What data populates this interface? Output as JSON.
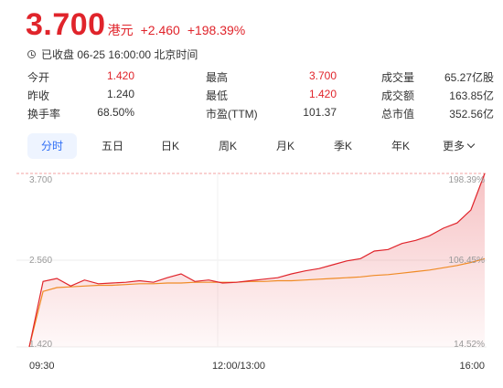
{
  "header": {
    "price": "3.700",
    "currency": "港元",
    "change": "+2.460",
    "change_pct": "+198.39%"
  },
  "status": {
    "text": "已收盘 06-25 16:00:00 北京时间"
  },
  "stats": {
    "rows": [
      [
        {
          "label": "今开",
          "value": "1.420"
        },
        {
          "label": "最高",
          "value": "3.700"
        },
        {
          "label": "成交量",
          "value": "65.27亿股"
        }
      ],
      [
        {
          "label": "昨收",
          "value": "1.240"
        },
        {
          "label": "最低",
          "value": "1.420"
        },
        {
          "label": "成交额",
          "value": "163.85亿"
        }
      ],
      [
        {
          "label": "换手率",
          "value": "68.50%"
        },
        {
          "label": "市盈(TTM)",
          "value": "101.37"
        },
        {
          "label": "总市值",
          "value": "352.56亿"
        }
      ]
    ]
  },
  "tabs": [
    {
      "label": "分时",
      "active": true
    },
    {
      "label": "五日"
    },
    {
      "label": "日K"
    },
    {
      "label": "周K"
    },
    {
      "label": "月K"
    },
    {
      "label": "季K"
    },
    {
      "label": "年K"
    },
    {
      "label": "更多"
    }
  ],
  "chart": {
    "y_left": [
      "3.700",
      "2.560",
      "1.420"
    ],
    "y_right": [
      "198.39%",
      "106.45%",
      "14.52%"
    ],
    "x_labels": [
      "09:30",
      "12:00/13:00",
      "16:00"
    ],
    "colors": {
      "price": "#e0242b",
      "avg": "#f08a24",
      "fill": "#fbe3e4",
      "grid": "#eeeeee",
      "hi_line": "#f3a0a0"
    }
  },
  "chart_data": {
    "type": "line",
    "x": [
      "09:30",
      "09:40",
      "09:50",
      "10:00",
      "10:10",
      "10:20",
      "10:30",
      "10:40",
      "10:50",
      "11:00",
      "11:10",
      "11:20",
      "11:30",
      "11:40",
      "11:50",
      "12:00/13:00",
      "13:10",
      "13:20",
      "13:30",
      "13:40",
      "13:50",
      "14:00",
      "14:10",
      "14:20",
      "14:30",
      "14:40",
      "14:50",
      "15:00",
      "15:10",
      "15:20",
      "15:30",
      "15:40",
      "15:50",
      "16:00"
    ],
    "series": [
      {
        "values": [
          1.42,
          2.28,
          2.32,
          2.22,
          2.3,
          2.25,
          2.26,
          2.27,
          2.29,
          2.27,
          2.33,
          2.38,
          2.28,
          2.3,
          2.26,
          2.27,
          2.29,
          2.31,
          2.33,
          2.38,
          2.42,
          2.45,
          2.5,
          2.55,
          2.58,
          2.68,
          2.7,
          2.78,
          2.82,
          2.88,
          2.98,
          3.05,
          3.22,
          3.7
        ]
      },
      {
        "values": [
          1.42,
          2.15,
          2.2,
          2.21,
          2.22,
          2.23,
          2.23,
          2.24,
          2.25,
          2.25,
          2.26,
          2.26,
          2.27,
          2.27,
          2.27,
          2.27,
          2.28,
          2.28,
          2.29,
          2.29,
          2.3,
          2.31,
          2.32,
          2.33,
          2.34,
          2.36,
          2.37,
          2.39,
          2.41,
          2.43,
          2.46,
          2.49,
          2.53,
          2.58
        ]
      }
    ],
    "ylim": [
      1.42,
      3.7
    ],
    "grid": true
  }
}
